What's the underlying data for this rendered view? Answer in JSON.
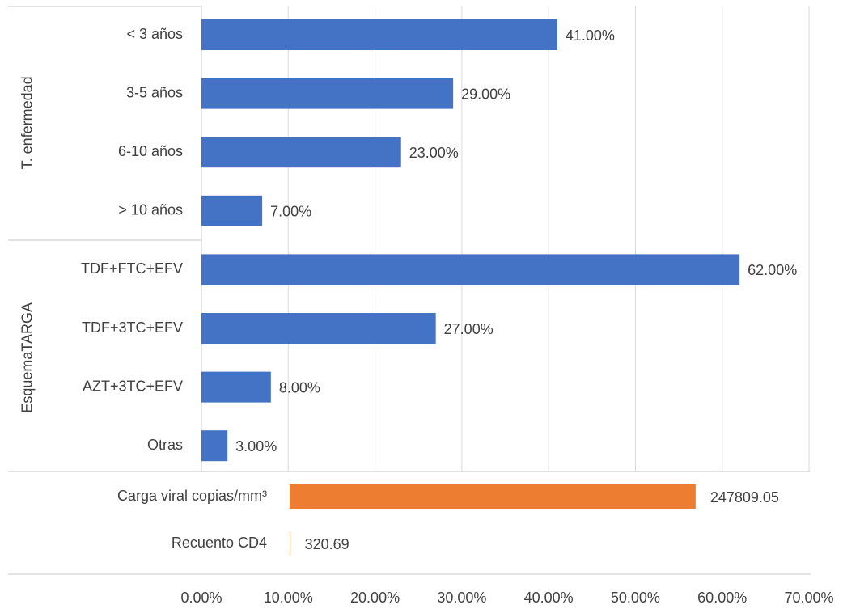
{
  "chart_data": {
    "type": "bar",
    "groups": [
      {
        "name": "T. enfermedad",
        "categories": [
          "< 3 años",
          "3-5 años",
          "6-10 años",
          "> 10 años"
        ],
        "values": [
          41,
          29,
          23,
          7
        ],
        "value_labels": [
          "41.00%",
          "29.00%",
          "23.00%",
          "7.00%"
        ]
      },
      {
        "name": "EsquemaTARGA",
        "categories": [
          "TDF+FTC+EFV",
          "TDF+3TC+EFV",
          "AZT+3TC+EFV",
          "Otras"
        ],
        "values": [
          62,
          27,
          8,
          3
        ],
        "value_labels": [
          "62.00%",
          "27.00%",
          "8.00%",
          "3.00%"
        ]
      }
    ],
    "color": "#4472c4",
    "secondary": {
      "categories": [
        "Carga viral copias/mm³",
        "Recuento CD4"
      ],
      "values": [
        247809.05,
        320.69
      ],
      "color": "#ed7d31",
      "axis": "x2"
    },
    "xlim": [
      0,
      70
    ],
    "xticks": [
      {
        "value": 0,
        "label": "0.00%"
      },
      {
        "value": 10,
        "label": "10.00%"
      },
      {
        "value": 20,
        "label": "20.00%"
      },
      {
        "value": 30,
        "label": "30.00%"
      },
      {
        "value": 40,
        "label": "40.00%"
      },
      {
        "value": 50,
        "label": "50.00%"
      },
      {
        "value": 60,
        "label": "60.00%"
      },
      {
        "value": 70,
        "label": "70.00%"
      }
    ],
    "x2lim": [
      0,
      317000
    ],
    "grid": true
  }
}
